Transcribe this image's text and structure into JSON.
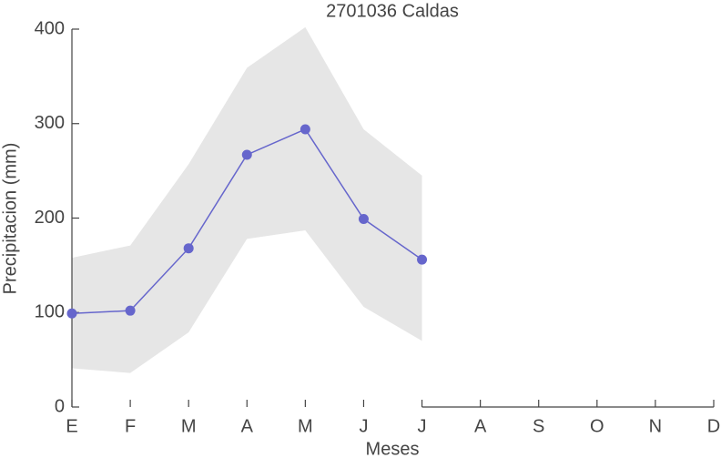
{
  "chart_data": {
    "type": "line",
    "title": "2701036 Caldas",
    "x_label": "Meses",
    "y_label": "Precipitacion (mm)",
    "categories": [
      "E",
      "F",
      "M",
      "A",
      "M",
      "J",
      "J",
      "A",
      "S",
      "O",
      "N",
      "D"
    ],
    "series": [
      {
        "color": "#6666cc",
        "values": [
          99,
          102,
          168,
          267,
          294,
          199,
          156,
          null,
          null,
          null,
          null,
          null
        ]
      }
    ],
    "band": {
      "color": "#e6e6e6",
      "upper": [
        158,
        171,
        257,
        359,
        402,
        294,
        245,
        null,
        null,
        null,
        null,
        null
      ],
      "lower": [
        41,
        36,
        79,
        178,
        187,
        106,
        70,
        null,
        null,
        null,
        null,
        null
      ]
    },
    "ylim": [
      0,
      400
    ],
    "yticks": [
      0,
      100,
      200,
      300,
      400
    ],
    "grid": false
  }
}
